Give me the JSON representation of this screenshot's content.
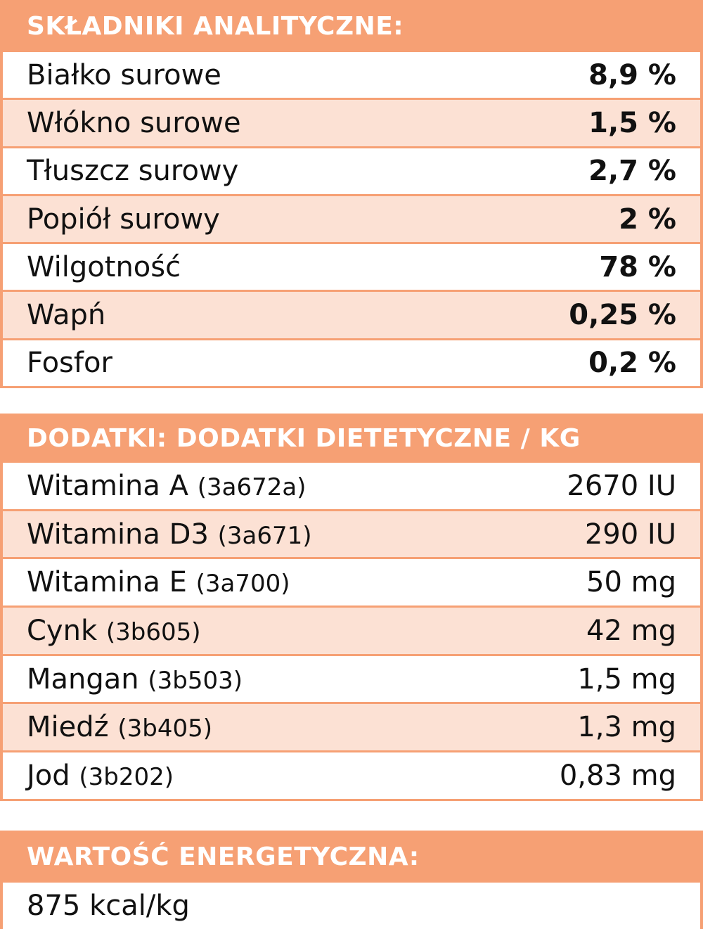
{
  "analytical": {
    "title": "SKŁADNIKI ANALITYCZNE:",
    "rows": [
      {
        "label": "Białko surowe",
        "value": "8,9 %"
      },
      {
        "label": "Włókno surowe",
        "value": "1,5 %"
      },
      {
        "label": "Tłuszcz surowy",
        "value": "2,7 %"
      },
      {
        "label": "Popiół surowy",
        "value": "2 %"
      },
      {
        "label": "Wilgotność",
        "value": "78 %"
      },
      {
        "label": "Wapń",
        "value": "0,25 %"
      },
      {
        "label": "Fosfor",
        "value": "0,2 %"
      }
    ]
  },
  "additives": {
    "title": "DODATKI: DODATKI DIETETYCZNE / KG",
    "rows": [
      {
        "label": "Witamina A",
        "code": "(3a672a)",
        "value": "2670 IU"
      },
      {
        "label": "Witamina D3",
        "code": "(3a671)",
        "value": "290 IU"
      },
      {
        "label": "Witamina E",
        "code": "(3a700)",
        "value": "50 mg"
      },
      {
        "label": "Cynk",
        "code": "(3b605)",
        "value": "42 mg"
      },
      {
        "label": "Mangan",
        "code": "(3b503)",
        "value": "1,5 mg"
      },
      {
        "label": "Miedź",
        "code": "(3b405)",
        "value": "1,3 mg"
      },
      {
        "label": "Jod",
        "code": "(3b202)",
        "value": "0,83 mg"
      }
    ]
  },
  "energy": {
    "title": "WARTOŚĆ ENERGETYCZNA:",
    "value": "875 kcal/kg"
  },
  "colors": {
    "header_bg": "#F6A074",
    "alt_row_bg": "#FCE1D4",
    "header_text": "#FFFFFF"
  }
}
